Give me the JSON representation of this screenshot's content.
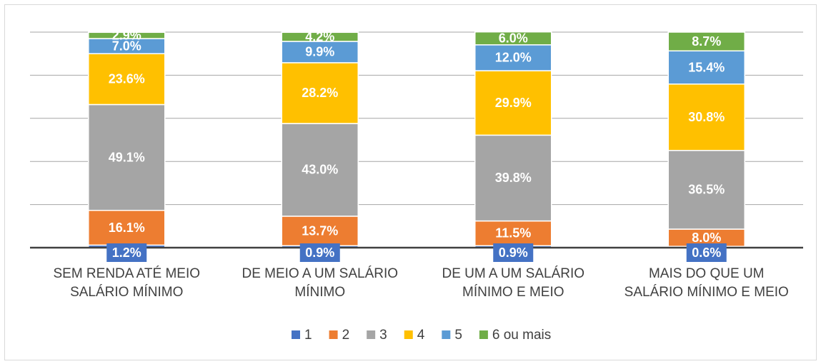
{
  "chart_data": {
    "type": "stacked_bar",
    "categories": [
      [
        "SEM RENDA ATÉ MEIO",
        "SALÁRIO MÍNIMO"
      ],
      [
        "DE MEIO A UM SALÁRIO",
        "MÍNIMO"
      ],
      [
        "DE UM A UM SALÁRIO",
        "MÍNIMO E MEIO"
      ],
      [
        "MAIS DO QUE UM",
        "SALÁRIO MÍNIMO E MEIO"
      ]
    ],
    "series": [
      {
        "name": "1",
        "color": "#4472c4",
        "values": [
          1.2,
          0.9,
          0.9,
          0.6
        ],
        "value_labels": [
          "1.2%",
          "0.9%",
          "0.9%",
          "0.6%"
        ]
      },
      {
        "name": "2",
        "color": "#ed7d31",
        "values": [
          16.1,
          13.7,
          11.5,
          8.0
        ],
        "value_labels": [
          "16.1%",
          "13.7%",
          "11.5%",
          "8.0%"
        ]
      },
      {
        "name": "3",
        "color": "#a5a5a5",
        "values": [
          49.1,
          43.0,
          39.8,
          36.5
        ],
        "value_labels": [
          "49.1%",
          "43.0%",
          "39.8%",
          "36.5%"
        ]
      },
      {
        "name": "4",
        "color": "#ffc000",
        "values": [
          23.6,
          28.2,
          29.9,
          30.8
        ],
        "value_labels": [
          "23.6%",
          "28.2%",
          "29.9%",
          "30.8%"
        ]
      },
      {
        "name": "5",
        "color": "#5b9bd5",
        "values": [
          7.0,
          9.9,
          12.0,
          15.4
        ],
        "value_labels": [
          "7.0%",
          "9.9%",
          "12.0%",
          "15.4%"
        ]
      },
      {
        "name": "6 ou mais",
        "color": "#70ad47",
        "values": [
          2.9,
          4.2,
          6.0,
          8.7
        ],
        "value_labels": [
          "2.9%",
          "4.2%",
          "6.0%",
          "8.7%"
        ]
      }
    ],
    "ylim": [
      0,
      100
    ],
    "yticks": [
      0,
      20,
      40,
      60,
      80,
      100
    ],
    "grid": true,
    "legend": "bottom"
  }
}
